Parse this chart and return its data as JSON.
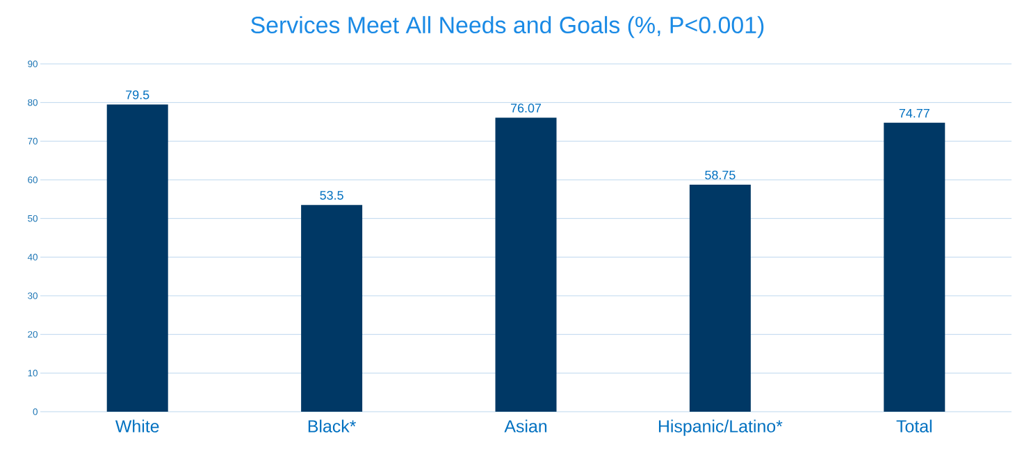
{
  "chart_data": {
    "type": "bar",
    "title": "Services Meet All Needs and Goals (%, P<0.001)",
    "categories": [
      "White",
      "Black*",
      "Asian",
      "Hispanic/Latino*",
      "Total"
    ],
    "values": [
      79.5,
      53.5,
      76.07,
      58.75,
      74.77
    ],
    "color": "#003865",
    "ylim": [
      0,
      90
    ],
    "yticks": [
      0,
      10,
      20,
      30,
      40,
      50,
      60,
      70,
      80,
      90
    ],
    "grid": "y",
    "data_labels": true
  }
}
